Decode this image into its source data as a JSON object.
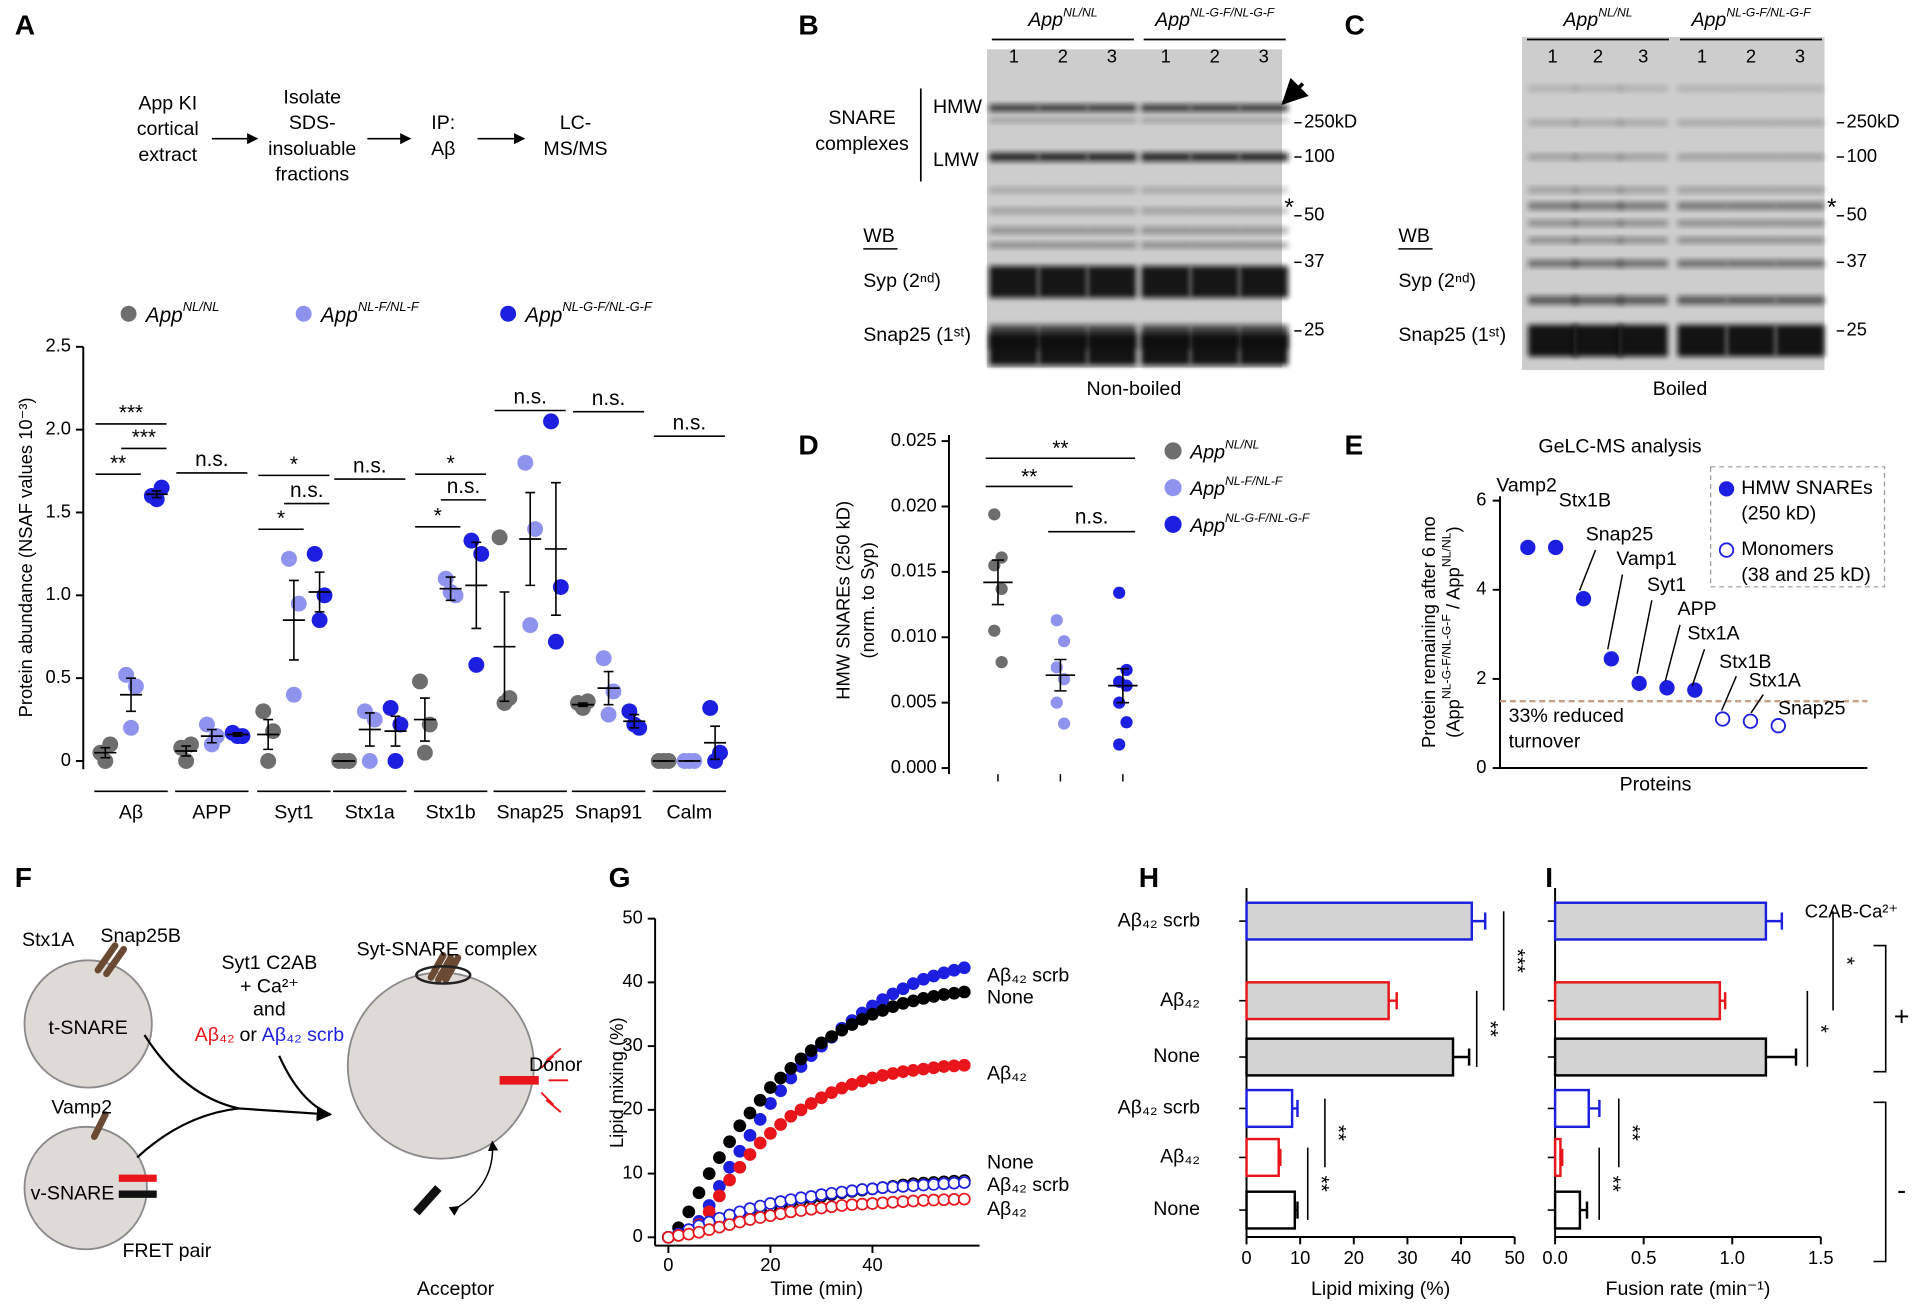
{
  "panel_labels": [
    "A",
    "B",
    "C",
    "D",
    "E",
    "F",
    "G",
    "H",
    "I"
  ],
  "flowchart": {
    "steps": [
      [
        "App KI",
        "cortical",
        "extract"
      ],
      [
        "Isolate",
        "SDS-",
        "insoluable",
        "fractions"
      ],
      [
        "IP:",
        "Aβ"
      ],
      [
        "LC-",
        "MS/MS"
      ]
    ]
  },
  "blots": [
    {
      "groups": [
        {
          "name": "App",
          "name_sup": "NL/NL"
        },
        {
          "name": "App",
          "name_sup": "NL-G-F/NL-G-F"
        }
      ],
      "lanes": [
        "1",
        "2",
        "3",
        "1",
        "2",
        "3"
      ],
      "complex_label": [
        "SNARE",
        "complexes"
      ],
      "hmw": "HMW",
      "lmw": "LMW",
      "wb": "WB",
      "rows": [
        "Syp (2ⁿᵈ)",
        "Snap25 (1ˢᵗ)"
      ],
      "markers": [
        "250kD",
        "100",
        "50",
        "37",
        "25"
      ],
      "star": "*",
      "caption": "Non-boiled"
    },
    {
      "groups": [
        {
          "name": "App",
          "name_sup": "NL/NL"
        },
        {
          "name": "App",
          "name_sup": "NL-G-F/NL-G-F"
        }
      ],
      "lanes": [
        "1",
        "2",
        "3",
        "1",
        "2",
        "3"
      ],
      "wb": "WB",
      "rows": [
        "Syp (2ⁿᵈ)",
        "Snap25 (1ˢᵗ)"
      ],
      "markers": [
        "250kD",
        "100",
        "50",
        "37",
        "25"
      ],
      "star": "*",
      "caption": "Boiled"
    }
  ],
  "diagram": {
    "stx": "Stx1A",
    "snap": "Snap25B",
    "t_snare": "t-SNARE",
    "vamp": "Vamp2",
    "v_snare": "v-SNARE",
    "fret": "FRET pair",
    "c2ab": "Syt1 C2AB",
    "ca": "+ Ca²⁺",
    "and": "and",
    "abeta": "Aβ₄₂",
    "or": "or",
    "scrb": "Aβ₄₂ scrb",
    "complex": "Syt-SNARE complex",
    "donor": "Donor",
    "acceptor": "Acceptor"
  },
  "chart_data": [
    {
      "type": "dot",
      "y_label": "Protein abundance (NSAF values  10⁻³)",
      "categories": [
        "Aβ",
        "APP",
        "Syt1",
        "Stx1a",
        "Stx1b",
        "Snap25",
        "Snap91",
        "Calm"
      ],
      "ylim": [
        -0.05,
        2.5
      ],
      "yticks": [
        0,
        0.5,
        {
          "value": 1,
          "label": "1.0"
        },
        1.5,
        {
          "value": 2,
          "label": "2.0"
        },
        2.5
      ],
      "series": [
        {
          "name": "App",
          "name_sup": "NL/NL",
          "color": "#6e6e6e",
          "values": [
            [
              0.05,
              0.1,
              0
            ],
            [
              0.08,
              0.1,
              0
            ],
            [
              0.3,
              0.18,
              0
            ],
            [
              0,
              0,
              0
            ],
            [
              0.48,
              0.22,
              0.05
            ],
            [
              1.35,
              0.38,
              0.35
            ],
            [
              0.35,
              0.36,
              0.32
            ],
            [
              0,
              0,
              0
            ]
          ],
          "mean": [
            0.05,
            0.06,
            0.16,
            0,
            0.25,
            0.69,
            0.34,
            0
          ],
          "sem": [
            0.03,
            0.03,
            0.09,
            0,
            0.13,
            0.33,
            0.01,
            0
          ]
        },
        {
          "name": "App",
          "name_sup": "NL-F/NL-F",
          "color": "#8f93ee",
          "values": [
            [
              0.52,
              0.45,
              0.2
            ],
            [
              0.22,
              0.15,
              0.1
            ],
            [
              1.22,
              0.95,
              0.4
            ],
            [
              0.3,
              0.25,
              0
            ],
            [
              1.1,
              1.0,
              1.02
            ],
            [
              1.8,
              1.4,
              0.82
            ],
            [
              0.62,
              0.42,
              0.28
            ],
            [
              0,
              0,
              0
            ]
          ],
          "mean": [
            0.4,
            0.15,
            0.85,
            0.19,
            1.04,
            1.34,
            0.44,
            0
          ],
          "sem": [
            0.1,
            0.04,
            0.24,
            0.1,
            0.07,
            0.28,
            0.1,
            0
          ]
        },
        {
          "name": "App",
          "name_sup": "NL-G-F/NL-G-F",
          "color": "#1c1fe0",
          "values": [
            [
              1.6,
              1.65,
              1.58
            ],
            [
              0.17,
              0.15,
              0.15
            ],
            [
              1.25,
              1.0,
              0.85
            ],
            [
              0.32,
              0.22,
              0
            ],
            [
              1.33,
              1.25,
              0.58
            ],
            [
              2.05,
              1.05,
              0.72
            ],
            [
              0.3,
              0.2,
              0.22
            ],
            [
              0.32,
              0.05,
              0
            ]
          ],
          "mean": [
            1.61,
            0.16,
            1.02,
            0.18,
            1.06,
            1.28,
            0.24,
            0.11
          ],
          "sem": [
            0.02,
            0.01,
            0.12,
            0.09,
            0.26,
            0.4,
            0.04,
            0.1
          ]
        }
      ],
      "annotations": [
        {
          "text": "***",
          "category": 0,
          "from": 0,
          "to": 2
        },
        {
          "text": "***",
          "category": 0,
          "from": 1,
          "to": 2
        },
        {
          "text": "**",
          "category": 0,
          "from": 0,
          "to": 1
        },
        {
          "text": "n.s.",
          "category": 1,
          "from": 0,
          "to": 2
        },
        {
          "text": "*",
          "category": 2,
          "from": 0,
          "to": 2
        },
        {
          "text": "n.s.",
          "category": 2,
          "from": 1,
          "to": 2
        },
        {
          "text": "*",
          "category": 2,
          "from": 0,
          "to": 1
        },
        {
          "text": "n.s.",
          "category": 3,
          "from": 0,
          "to": 2
        },
        {
          "text": "*",
          "category": 4,
          "from": 0,
          "to": 2
        },
        {
          "text": "n.s.",
          "category": 4,
          "from": 1,
          "to": 2
        },
        {
          "text": "*",
          "category": 4,
          "from": 0,
          "to": 1
        },
        {
          "text": "n.s.",
          "category": 5,
          "from": 0,
          "to": 2
        },
        {
          "text": "n.s.",
          "category": 6,
          "from": 0,
          "to": 2
        },
        {
          "text": "n.s.",
          "category": 7,
          "from": 0,
          "to": 2
        }
      ]
    },
    {
      "type": "dot",
      "y_label": [
        "HMW SNAREs (250 kD)",
        "(norm. to Syp)"
      ],
      "ylim": [
        0,
        0.025
      ],
      "yticks": [
        {
          "value": 0,
          "label": "0.000"
        },
        0.005,
        {
          "value": 0.01,
          "label": "0.010"
        },
        0.015,
        {
          "value": 0.02,
          "label": "0.020"
        },
        0.025
      ],
      "series": [
        {
          "name": "App",
          "name_sup": "NL/NL",
          "color": "#6e6e6e",
          "values": [
            0.0194,
            0.0161,
            0.0155,
            0.0137,
            0.0105,
            0.0081
          ],
          "mean": 0.0142,
          "sem": 0.0017
        },
        {
          "name": "App",
          "name_sup": "NL-F/NL-F",
          "color": "#8f93ee",
          "values": [
            0.0113,
            0.0097,
            0.0077,
            0.0068,
            0.005,
            0.0034
          ],
          "mean": 0.0071,
          "sem": 0.0012
        },
        {
          "name": "App",
          "name_sup": "NL-G-F/NL-G-F",
          "color": "#1c1fe0",
          "values": [
            0.0134,
            0.0075,
            0.0066,
            0.0063,
            0.005,
            0.0035,
            0.0018
          ],
          "mean": 0.0063,
          "sem": 0.0013
        }
      ],
      "annotations": [
        {
          "text": "**",
          "from": 0,
          "to": 2
        },
        {
          "text": "**",
          "from": 0,
          "to": 1
        },
        {
          "text": "n.s.",
          "from": 1,
          "to": 2
        }
      ]
    },
    {
      "type": "scatter",
      "title": "GeLC-MS analysis",
      "x_label": "Proteins",
      "y_label": "Protein remaining after 6 mo",
      "y_label_parts": [
        {
          "text": "(App",
          "sup": "NL-G-F/NL-G-F"
        },
        {
          "text": " / App",
          "sup": "NL/NL"
        },
        {
          "text": ")"
        }
      ],
      "xlim": [
        0,
        13.2
      ],
      "ylim": [
        0,
        6.1
      ],
      "yticks": [
        0,
        2,
        4,
        6
      ],
      "series": [
        {
          "name": [
            "HMW SNAREs",
            "(250 kD)"
          ],
          "color": "#1c1fe0",
          "filled": true,
          "x": [
            1,
            2,
            3,
            4,
            5,
            6,
            7
          ],
          "values": [
            4.95,
            4.95,
            3.8,
            2.45,
            1.9,
            1.8,
            1.75
          ],
          "labels": [
            "Vamp2",
            "Stx1B",
            "Snap25",
            "Vamp1",
            "Syt1",
            "APP",
            "Stx1A"
          ]
        },
        {
          "name": [
            "Monomers",
            "(38 and 25 kD)"
          ],
          "color": "#1c1fe0",
          "filled": false,
          "x": [
            8,
            9,
            10
          ],
          "values": [
            1.1,
            1.05,
            0.95
          ],
          "labels": [
            "Stx1B",
            "Stx1A",
            "Snap25"
          ]
        }
      ],
      "reference_line": {
        "value": 1.5,
        "label": [
          "33% reduced",
          "turnover"
        ],
        "color": "#c8a08a"
      }
    },
    {
      "type": "line",
      "x_label": "Time (min)",
      "y_label": "Lipid mixing (%)",
      "x": [
        0,
        2,
        4,
        6,
        8,
        10,
        12,
        14,
        16,
        18,
        20,
        22,
        24,
        26,
        28,
        30,
        32,
        34,
        36,
        38,
        40,
        42,
        44,
        46,
        48,
        50,
        52,
        54,
        56,
        58
      ],
      "xlim": [
        -2.6,
        61
      ],
      "ylim": [
        -1.3,
        50
      ],
      "xticks": [
        0,
        20,
        40
      ],
      "yticks": [
        0,
        10,
        20,
        30,
        40,
        50
      ],
      "series": [
        {
          "name": "Aβ₄₂ scrb",
          "color": "#1c1fe0",
          "filled": true,
          "values": [
            0,
            0.5,
            1,
            2.5,
            5,
            8,
            11,
            13.5,
            16,
            18.5,
            21,
            23,
            25,
            26.8,
            28.5,
            30,
            31.4,
            32.8,
            34,
            35.2,
            36.3,
            37.3,
            38.2,
            39,
            39.8,
            40.5,
            41,
            41.5,
            41.9,
            42.3
          ]
        },
        {
          "name": "None",
          "color": "#000000",
          "filled": true,
          "values": [
            0,
            1.5,
            4,
            7,
            10,
            12.5,
            15,
            17.5,
            19.5,
            21.5,
            23.5,
            25,
            26.5,
            28,
            29.3,
            30.5,
            31.5,
            32.5,
            33.4,
            34.2,
            35,
            35.6,
            36.2,
            36.7,
            37.1,
            37.5,
            37.8,
            38.1,
            38.3,
            38.5
          ]
        },
        {
          "name": "Aβ₄₂",
          "color": "#e8151b",
          "filled": true,
          "values": [
            0,
            0.3,
            0.8,
            2,
            4,
            6.5,
            9,
            11,
            13,
            14.8,
            16.3,
            17.7,
            19,
            20,
            21,
            21.9,
            22.7,
            23.4,
            24,
            24.5,
            25,
            25.4,
            25.7,
            26,
            26.2,
            26.4,
            26.6,
            26.8,
            26.9,
            27
          ]
        },
        {
          "name": "None",
          "color": "#000000",
          "filled": false,
          "values": [
            0,
            0.5,
            1,
            1.5,
            2,
            2.5,
            3,
            3.5,
            4,
            4.4,
            4.8,
            5.2,
            5.5,
            5.8,
            6.1,
            6.4,
            6.7,
            7,
            7.2,
            7.4,
            7.6,
            7.8,
            8,
            8.2,
            8.4,
            8.5,
            8.6,
            8.7,
            8.8,
            8.9
          ]
        },
        {
          "name": "Aβ₄₂ scrb",
          "color": "#1c1fe0",
          "filled": false,
          "values": [
            0,
            0.5,
            1.2,
            1.8,
            2.4,
            3,
            3.5,
            4,
            4.5,
            4.9,
            5.3,
            5.6,
            5.9,
            6.2,
            6.4,
            6.7,
            6.9,
            7.1,
            7.3,
            7.5,
            7.6,
            7.8,
            7.9,
            8,
            8.1,
            8.2,
            8.3,
            8.4,
            8.5,
            8.6
          ]
        },
        {
          "name": "Aβ₄₂",
          "color": "#e8151b",
          "filled": false,
          "values": [
            0,
            0.3,
            0.5,
            0.8,
            1.2,
            1.6,
            2,
            2.4,
            2.8,
            3.1,
            3.4,
            3.7,
            4,
            4.2,
            4.4,
            4.6,
            4.8,
            5,
            5.1,
            5.2,
            5.3,
            5.4,
            5.5,
            5.6,
            5.7,
            5.8,
            5.85,
            5.9,
            5.95,
            6
          ]
        }
      ]
    },
    {
      "type": "hbar",
      "x_label": "Lipid mixing (%)",
      "categories": [
        "Aβ₄₂ scrb",
        "Aβ₄₂",
        "None",
        "Aβ₄₂ scrb",
        "Aβ₄₂",
        "None"
      ],
      "colors": [
        "#1c1fe0",
        "#e8151b",
        "#000000",
        "#1c1fe0",
        "#e8151b",
        "#000000"
      ],
      "fills": [
        "#d3d3d3",
        "#d3d3d3",
        "#d3d3d3",
        "#ffffff",
        "#ffffff",
        "#ffffff"
      ],
      "values": [
        42,
        26.5,
        38.5,
        8.5,
        6,
        9
      ],
      "errors": [
        2.5,
        1.5,
        3,
        1,
        0.3,
        0.5
      ],
      "xlim": [
        0,
        50
      ],
      "xticks": [
        0,
        10,
        20,
        30,
        40,
        50
      ],
      "annotations": [
        {
          "text": "***",
          "from": 0,
          "to": 1
        },
        {
          "text": "**",
          "from": 1,
          "to": 2
        },
        {
          "text": "**",
          "from": 3,
          "to": 4
        },
        {
          "text": "**",
          "from": 4,
          "to": 5
        }
      ]
    },
    {
      "type": "hbar",
      "x_label": "Fusion rate (min⁻¹)",
      "title": "C2AB-Ca²⁺",
      "groups": [
        "+",
        "-"
      ],
      "colors": [
        "#1c1fe0",
        "#e8151b",
        "#000000",
        "#1c1fe0",
        "#e8151b",
        "#000000"
      ],
      "fills": [
        "#d3d3d3",
        "#d3d3d3",
        "#d3d3d3",
        "#ffffff",
        "#ffffff",
        "#ffffff"
      ],
      "values": [
        1.19,
        0.93,
        1.19,
        0.19,
        0.03,
        0.14
      ],
      "errors": [
        0.09,
        0.03,
        0.17,
        0.06,
        0.01,
        0.04
      ],
      "xlim": [
        0,
        1.5
      ],
      "xticks": [
        {
          "value": 0,
          "label": "0.0"
        },
        0.5,
        {
          "value": 1,
          "label": "1.0"
        },
        1.5
      ],
      "annotations": [
        {
          "text": "*",
          "from": 0,
          "to": 1
        },
        {
          "text": "*",
          "from": 1,
          "to": 2
        },
        {
          "text": "**",
          "from": 3,
          "to": 4
        },
        {
          "text": "**",
          "from": 4,
          "to": 5
        }
      ]
    }
  ]
}
